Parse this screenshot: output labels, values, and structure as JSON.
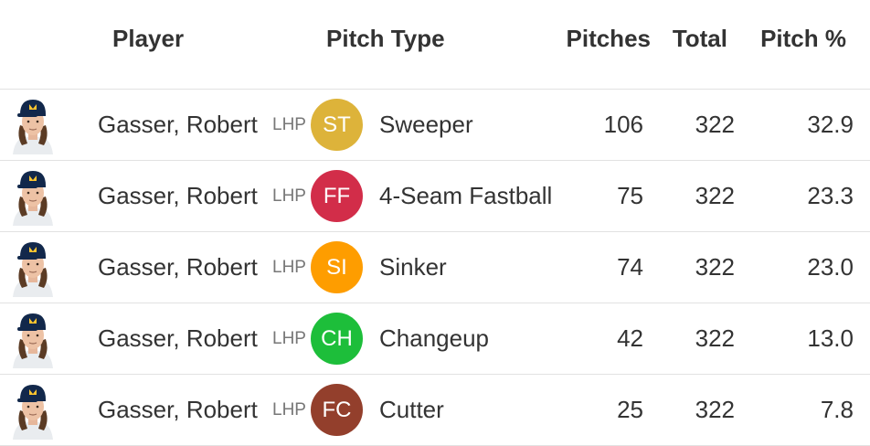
{
  "header": {
    "player": "Player",
    "pitch_type": "Pitch Type",
    "pitches": "Pitches",
    "total": "Total",
    "pitch_pct": "Pitch %"
  },
  "rows": [
    {
      "player": "Gasser, Robert",
      "hand": "LHP",
      "code": "ST",
      "code_color": "#DDB33A",
      "pitch": "Sweeper",
      "pitches": "106",
      "total": "322",
      "pct": "32.9"
    },
    {
      "player": "Gasser, Robert",
      "hand": "LHP",
      "code": "FF",
      "code_color": "#D22D49",
      "pitch": "4-Seam Fastball",
      "pitches": "75",
      "total": "322",
      "pct": "23.3"
    },
    {
      "player": "Gasser, Robert",
      "hand": "LHP",
      "code": "SI",
      "code_color": "#FE9D00",
      "pitch": "Sinker",
      "pitches": "74",
      "total": "322",
      "pct": "23.0"
    },
    {
      "player": "Gasser, Robert",
      "hand": "LHP",
      "code": "CH",
      "code_color": "#1DBE3A",
      "pitch": "Changeup",
      "pitches": "42",
      "total": "322",
      "pct": "13.0"
    },
    {
      "player": "Gasser, Robert",
      "hand": "LHP",
      "code": "FC",
      "code_color": "#933F2C",
      "pitch": "Cutter",
      "pitches": "25",
      "total": "322",
      "pct": "7.8"
    }
  ]
}
